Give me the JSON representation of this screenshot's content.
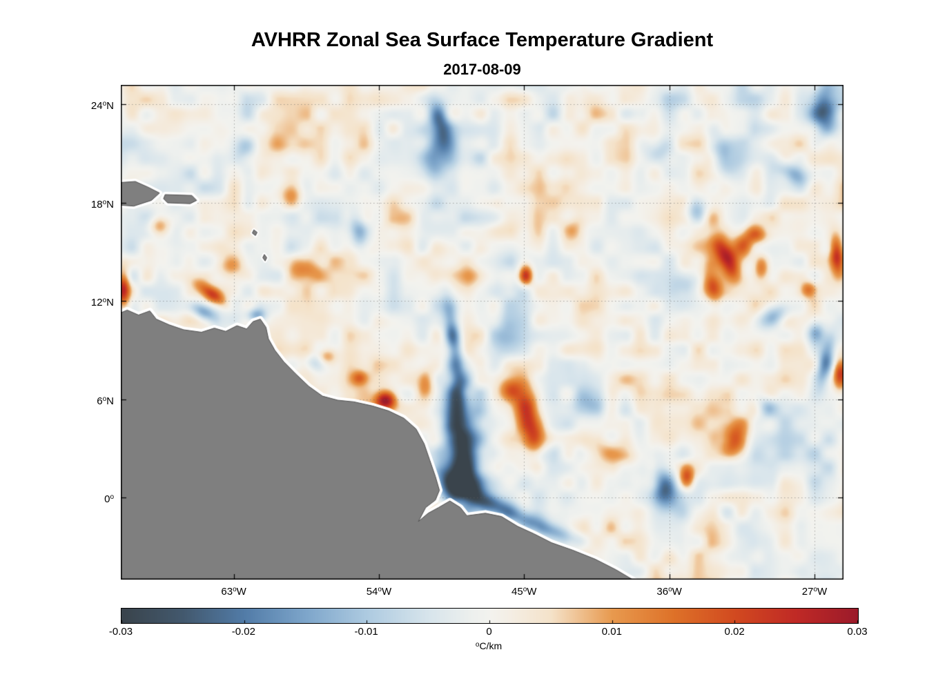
{
  "chart_data": {
    "type": "heatmap",
    "title": "AVHRR Zonal Sea Surface Temperature Gradient",
    "subtitle": "2017-08-09",
    "xlabel": "",
    "ylabel": "",
    "grid": {
      "style": "dotted",
      "color": "#666666"
    },
    "x_axis": {
      "range": [
        -70.0,
        -25.2
      ],
      "ticks": [
        {
          "deg": "63",
          "sup": "o",
          "dir": "W",
          "value": -63
        },
        {
          "deg": "54",
          "sup": "o",
          "dir": "W",
          "value": -54
        },
        {
          "deg": "45",
          "sup": "o",
          "dir": "W",
          "value": -45
        },
        {
          "deg": "36",
          "sup": "o",
          "dir": "W",
          "value": -36
        },
        {
          "deg": "27",
          "sup": "o",
          "dir": "W",
          "value": -27
        }
      ]
    },
    "y_axis": {
      "range": [
        -5.0,
        25.2
      ],
      "ticks": [
        {
          "deg": "24",
          "sup": "o",
          "dir": "N",
          "value": 24
        },
        {
          "deg": "18",
          "sup": "o",
          "dir": "N",
          "value": 18
        },
        {
          "deg": "12",
          "sup": "o",
          "dir": "N",
          "value": 12
        },
        {
          "deg": "6",
          "sup": "o",
          "dir": "N",
          "value": 6
        },
        {
          "deg": "0",
          "sup": "o",
          "dir": "",
          "value": 0
        }
      ]
    },
    "colorbar": {
      "min": -0.03,
      "max": 0.03,
      "unit": {
        "sup": "o",
        "main": "C/km"
      },
      "ticks": [
        {
          "value": -0.03,
          "label": "-0.03"
        },
        {
          "value": -0.02,
          "label": "-0.02"
        },
        {
          "value": -0.01,
          "label": "-0.01"
        },
        {
          "value": 0,
          "label": "0"
        },
        {
          "value": 0.01,
          "label": "0.01"
        },
        {
          "value": 0.02,
          "label": "0.02"
        },
        {
          "value": 0.03,
          "label": "0.03"
        }
      ]
    },
    "colormap_stops": [
      [
        -0.03,
        "#3A444C"
      ],
      [
        -0.025,
        "#43596E"
      ],
      [
        -0.02,
        "#527CA8"
      ],
      [
        -0.015,
        "#7EA6CB"
      ],
      [
        -0.01,
        "#AECBE1"
      ],
      [
        -0.005,
        "#D8E5EC"
      ],
      [
        -0.0015,
        "#EDF0EE"
      ],
      [
        0.0,
        "#F3F3EF"
      ],
      [
        0.0015,
        "#F4EFE6"
      ],
      [
        0.005,
        "#F5E3CA"
      ],
      [
        0.01,
        "#E89A4F"
      ],
      [
        0.015,
        "#DE7229"
      ],
      [
        0.02,
        "#D24A20"
      ],
      [
        0.025,
        "#C02A26"
      ],
      [
        0.03,
        "#9C1B2B"
      ]
    ],
    "land": {
      "color": "#7F7F7F",
      "outline": "#4D4D4D",
      "coast_gap_color": "#FFFFFF",
      "polygons": [
        [
          [
            -70.7,
            11.0
          ],
          [
            -69.6,
            11.45
          ],
          [
            -68.9,
            11.15
          ],
          [
            -68.2,
            11.4
          ],
          [
            -67.8,
            10.9
          ],
          [
            -67.0,
            10.55
          ],
          [
            -66.1,
            10.25
          ],
          [
            -65.0,
            10.1
          ],
          [
            -64.2,
            10.35
          ],
          [
            -63.5,
            10.15
          ],
          [
            -62.8,
            10.5
          ],
          [
            -62.2,
            10.3
          ],
          [
            -61.8,
            10.75
          ],
          [
            -61.35,
            10.9
          ],
          [
            -61.0,
            10.4
          ],
          [
            -60.85,
            9.7
          ],
          [
            -60.45,
            9.0
          ],
          [
            -59.9,
            8.3
          ],
          [
            -59.15,
            7.55
          ],
          [
            -58.35,
            6.8
          ],
          [
            -57.5,
            6.2
          ],
          [
            -56.55,
            5.95
          ],
          [
            -55.55,
            5.85
          ],
          [
            -54.4,
            5.6
          ],
          [
            -53.4,
            5.3
          ],
          [
            -52.45,
            4.85
          ],
          [
            -51.7,
            4.2
          ],
          [
            -51.2,
            3.3
          ],
          [
            -50.85,
            2.3
          ],
          [
            -50.5,
            1.3
          ],
          [
            -50.25,
            0.45
          ],
          [
            -50.5,
            -0.15
          ],
          [
            -51.1,
            -0.6
          ],
          [
            -51.55,
            -1.45
          ],
          [
            -50.95,
            -0.95
          ],
          [
            -50.3,
            -0.6
          ],
          [
            -49.6,
            -0.2
          ],
          [
            -48.95,
            -0.6
          ],
          [
            -48.55,
            -1.1
          ],
          [
            -47.4,
            -0.95
          ],
          [
            -46.4,
            -1.15
          ],
          [
            -45.4,
            -1.75
          ],
          [
            -44.4,
            -2.2
          ],
          [
            -43.3,
            -2.75
          ],
          [
            -42.0,
            -3.2
          ],
          [
            -40.6,
            -3.75
          ],
          [
            -39.3,
            -4.4
          ],
          [
            -38.1,
            -5.1
          ],
          [
            -37.6,
            -5.7
          ],
          [
            -70.7,
            -5.7
          ]
        ],
        [
          [
            -70.6,
            19.2
          ],
          [
            -69.1,
            19.3
          ],
          [
            -68.3,
            18.95
          ],
          [
            -67.6,
            18.6
          ],
          [
            -68.1,
            18.15
          ],
          [
            -69.2,
            17.8
          ],
          [
            -70.6,
            17.9
          ]
        ],
        [
          [
            -67.25,
            18.5
          ],
          [
            -65.6,
            18.45
          ],
          [
            -65.3,
            18.15
          ],
          [
            -65.7,
            17.95
          ],
          [
            -67.1,
            18.0
          ],
          [
            -67.35,
            18.25
          ]
        ],
        [
          [
            -61.75,
            16.35
          ],
          [
            -61.55,
            16.2
          ],
          [
            -61.65,
            16.0
          ],
          [
            -61.85,
            16.15
          ]
        ],
        [
          [
            -61.1,
            14.85
          ],
          [
            -60.95,
            14.65
          ],
          [
            -61.05,
            14.45
          ],
          [
            -61.2,
            14.65
          ]
        ]
      ]
    },
    "gradient_features": [
      [
        -49.4,
        9.8,
        0.35,
        1.6,
        8,
        -0.02
      ],
      [
        -49.1,
        6.3,
        0.45,
        1.2,
        5,
        -0.016
      ],
      [
        -48.9,
        3.0,
        0.75,
        2.0,
        8,
        -0.03
      ],
      [
        -49.4,
        1.0,
        0.9,
        0.8,
        0,
        -0.024
      ],
      [
        -47.8,
        0.0,
        1.4,
        0.45,
        -25,
        -0.018
      ],
      [
        -45.6,
        -1.0,
        1.3,
        0.4,
        -18,
        -0.014
      ],
      [
        -43.4,
        -2.0,
        1.2,
        0.35,
        -18,
        -0.012
      ],
      [
        -50.2,
        22.8,
        0.45,
        1.2,
        12,
        -0.02
      ],
      [
        -50.6,
        20.6,
        0.55,
        0.8,
        0,
        -0.012
      ],
      [
        -26.4,
        23.6,
        0.6,
        1.0,
        0,
        -0.02
      ],
      [
        -32.6,
        20.8,
        0.55,
        0.9,
        20,
        -0.014
      ],
      [
        -28.4,
        19.8,
        0.8,
        0.4,
        -30,
        -0.012
      ],
      [
        -34.3,
        17.6,
        0.5,
        0.6,
        0,
        -0.013
      ],
      [
        -36.2,
        0.5,
        0.5,
        0.9,
        10,
        -0.022
      ],
      [
        -26.3,
        8.4,
        0.35,
        1.2,
        -12,
        -0.02
      ],
      [
        -26.9,
        10.1,
        0.4,
        0.6,
        0,
        -0.014
      ],
      [
        -29.6,
        11.0,
        0.7,
        0.45,
        25,
        -0.016
      ],
      [
        -64.8,
        11.3,
        0.6,
        0.35,
        -30,
        -0.018
      ],
      [
        -61.6,
        11.15,
        0.45,
        0.3,
        0,
        -0.014
      ],
      [
        -55.3,
        16.2,
        0.4,
        0.8,
        10,
        -0.011
      ],
      [
        -62.3,
        21.2,
        0.5,
        0.7,
        0,
        -0.011
      ],
      [
        -46.3,
        9.7,
        0.9,
        0.9,
        0,
        -0.009
      ],
      [
        -36.8,
        21.2,
        0.6,
        0.6,
        0,
        -0.01
      ],
      [
        -41.0,
        5.8,
        0.8,
        0.6,
        0,
        -0.008
      ],
      [
        -30.0,
        5.5,
        0.5,
        0.5,
        0,
        -0.01
      ],
      [
        -58.0,
        8.3,
        0.5,
        0.4,
        0,
        -0.009
      ],
      [
        -35.0,
        12.8,
        0.6,
        0.5,
        0,
        -0.009
      ],
      [
        -53.6,
        5.95,
        0.45,
        0.4,
        0,
        0.03
      ],
      [
        -44.8,
        5.4,
        0.55,
        1.2,
        15,
        0.02
      ],
      [
        -44.3,
        3.6,
        0.5,
        0.7,
        0,
        0.016
      ],
      [
        -45.9,
        6.6,
        0.45,
        0.5,
        0,
        0.013
      ],
      [
        -44.9,
        13.55,
        0.3,
        0.42,
        0,
        0.028
      ],
      [
        -32.4,
        14.6,
        0.4,
        1.0,
        25,
        0.026
      ],
      [
        -31.4,
        15.4,
        0.5,
        0.6,
        -20,
        0.02
      ],
      [
        -33.3,
        12.9,
        0.4,
        0.7,
        10,
        0.018
      ],
      [
        -30.3,
        14.1,
        0.35,
        0.55,
        0,
        0.016
      ],
      [
        -30.6,
        16.1,
        0.5,
        0.4,
        -25,
        0.015
      ],
      [
        -25.6,
        14.8,
        0.3,
        0.85,
        5,
        0.024
      ],
      [
        -69.85,
        12.75,
        0.3,
        0.85,
        0,
        0.026
      ],
      [
        -64.4,
        12.45,
        0.8,
        0.3,
        -35,
        0.02
      ],
      [
        -34.9,
        1.3,
        0.35,
        0.5,
        0,
        0.018
      ],
      [
        -32.0,
        3.5,
        0.55,
        0.65,
        0,
        0.02
      ],
      [
        -25.4,
        7.5,
        0.3,
        0.6,
        0,
        0.022
      ],
      [
        -39.7,
        2.7,
        0.9,
        0.45,
        -10,
        0.011
      ],
      [
        -58.7,
        14.0,
        0.7,
        0.5,
        0,
        0.012
      ],
      [
        -57.3,
        8.6,
        0.45,
        0.35,
        0,
        0.012
      ],
      [
        -55.2,
        7.3,
        0.35,
        0.3,
        0,
        0.013
      ],
      [
        -27.4,
        12.7,
        0.35,
        0.35,
        0,
        0.013
      ],
      [
        -51.1,
        6.9,
        0.4,
        0.7,
        0,
        0.011
      ],
      [
        -67.6,
        16.6,
        0.5,
        0.4,
        0,
        0.011
      ],
      [
        -63.2,
        14.2,
        0.6,
        0.5,
        0,
        0.01
      ],
      [
        -48.5,
        13.5,
        0.5,
        0.45,
        0,
        0.01
      ],
      [
        -59.5,
        18.5,
        0.6,
        0.5,
        0,
        0.009
      ],
      [
        -41.9,
        16.3,
        0.5,
        0.5,
        0,
        0.009
      ]
    ],
    "noise": {
      "octave1": {
        "scale_deg": 2.4,
        "amp": 0.0055
      },
      "octave2": {
        "scale_deg": 0.9,
        "amp": 0.0045
      }
    }
  }
}
